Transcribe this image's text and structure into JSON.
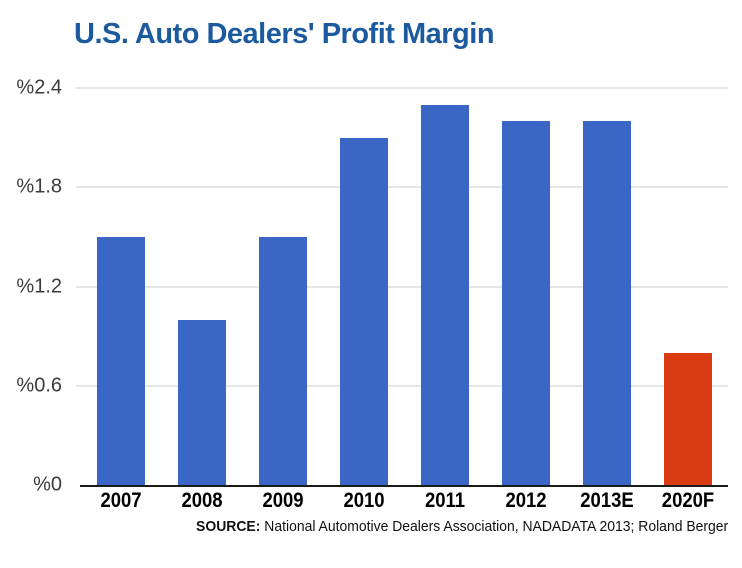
{
  "title": "U.S. Auto Dealers' Profit Margin",
  "source": {
    "label": "SOURCE:",
    "text": " National Automotive Dealers Association, NADADATA 2013; Roland Berger"
  },
  "chart_data": {
    "type": "bar",
    "title": "U.S. Auto Dealers' Profit Margin",
    "categories": [
      "2007",
      "2008",
      "2009",
      "2010",
      "2011",
      "2012",
      "2013E",
      "2020F"
    ],
    "values": [
      1.5,
      1.0,
      1.5,
      2.1,
      2.3,
      2.2,
      2.2,
      0.8
    ],
    "unit": "percent",
    "xlabel": "",
    "ylabel": "",
    "ylim": [
      0,
      2.4
    ],
    "yticks": [
      0,
      0.6,
      1.2,
      1.8,
      2.4
    ],
    "ytick_labels": [
      "%0",
      "%0.6",
      "%1.2",
      "%1.8",
      "%2.4"
    ],
    "grid": true,
    "legend": "none",
    "highlight_index": 7,
    "colors": {
      "bar": "#3A66C6",
      "highlight_bar": "#DA3B11",
      "title": "#1B5A9E",
      "gridline": "#CCCCCC",
      "axis": "#1A1A1A"
    }
  }
}
